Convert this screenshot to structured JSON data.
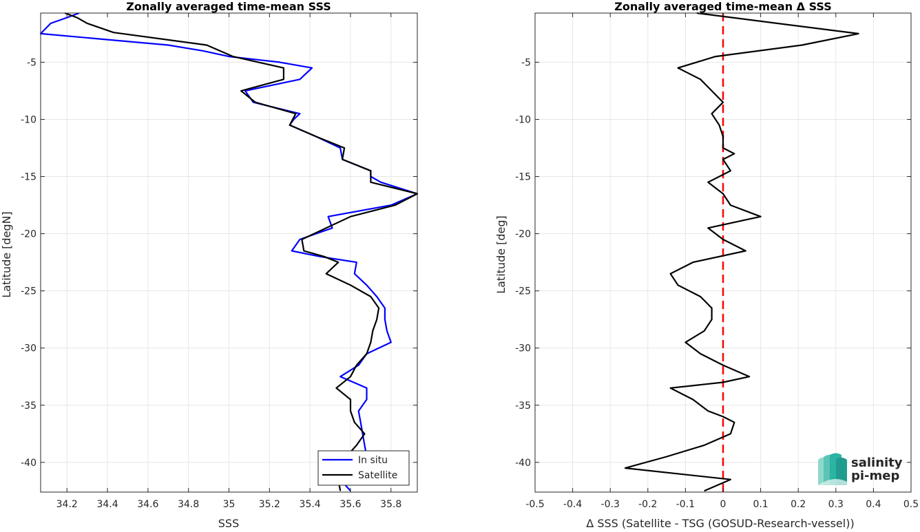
{
  "chart_data": [
    {
      "type": "line",
      "title": "Zonally averaged time-mean SSS",
      "xlabel": "SSS",
      "ylabel": "Latitude [degN]",
      "xlim": [
        34.07,
        35.93
      ],
      "ylim": [
        -42.6,
        -0.7
      ],
      "xticks": [
        34.2,
        34.4,
        34.6,
        34.8,
        35,
        35.2,
        35.4,
        35.6,
        35.8
      ],
      "xtick_labels": [
        "34.2",
        "34.4",
        "34.6",
        "34.8",
        "35",
        "35.2",
        "35.4",
        "35.6",
        "35.8"
      ],
      "yticks": [
        -5,
        -10,
        -15,
        -20,
        -25,
        -30,
        -35,
        -40
      ],
      "ytick_labels": [
        "-5",
        "-10",
        "-15",
        "-20",
        "-25",
        "-30",
        "-35",
        "-40"
      ],
      "grid": true,
      "legend": "bottom-right",
      "series": [
        {
          "name": "In situ",
          "color": "#0000ff",
          "points": [
            [
              34.26,
              -0.7
            ],
            [
              34.2,
              -1.1
            ],
            [
              34.12,
              -1.6
            ],
            [
              34.07,
              -2.5
            ],
            [
              34.7,
              -3.5
            ],
            [
              34.87,
              -4.0
            ],
            [
              35.0,
              -4.5
            ],
            [
              35.25,
              -5.0
            ],
            [
              35.41,
              -5.5
            ],
            [
              35.35,
              -6.5
            ],
            [
              35.08,
              -7.5
            ],
            [
              35.12,
              -8.5
            ],
            [
              35.35,
              -9.5
            ],
            [
              35.32,
              -10.0
            ],
            [
              35.3,
              -10.5
            ],
            [
              35.43,
              -11.5
            ],
            [
              35.55,
              -12.5
            ],
            [
              35.56,
              -13.5
            ],
            [
              35.7,
              -14.5
            ],
            [
              35.7,
              -15.0
            ],
            [
              35.75,
              -15.5
            ],
            [
              35.93,
              -16.5
            ],
            [
              35.8,
              -17.5
            ],
            [
              35.49,
              -18.5
            ],
            [
              35.51,
              -19.5
            ],
            [
              35.35,
              -20.5
            ],
            [
              35.31,
              -21.5
            ],
            [
              35.45,
              -22.0
            ],
            [
              35.63,
              -22.5
            ],
            [
              35.62,
              -23.5
            ],
            [
              35.68,
              -24.5
            ],
            [
              35.73,
              -25.5
            ],
            [
              35.77,
              -26.5
            ],
            [
              35.77,
              -27.5
            ],
            [
              35.78,
              -28.5
            ],
            [
              35.8,
              -29.5
            ],
            [
              35.68,
              -30.5
            ],
            [
              35.64,
              -31.5
            ],
            [
              35.55,
              -32.5
            ],
            [
              35.68,
              -33.5
            ],
            [
              35.68,
              -34.5
            ],
            [
              35.64,
              -35.5
            ],
            [
              35.65,
              -36.5
            ],
            [
              35.66,
              -37.5
            ],
            [
              35.67,
              -38.5
            ],
            [
              35.68,
              -39.5
            ],
            [
              35.6,
              -40.5
            ],
            [
              35.55,
              -41.5
            ],
            [
              35.6,
              -42.5
            ]
          ]
        },
        {
          "name": "Satellite",
          "color": "#000000",
          "points": [
            [
              34.19,
              -0.7
            ],
            [
              34.25,
              -1.1
            ],
            [
              34.3,
              -1.6
            ],
            [
              34.43,
              -2.4
            ],
            [
              34.89,
              -3.5
            ],
            [
              35.02,
              -4.5
            ],
            [
              35.27,
              -5.5
            ],
            [
              35.27,
              -6.5
            ],
            [
              35.06,
              -7.5
            ],
            [
              35.13,
              -8.5
            ],
            [
              35.33,
              -9.5
            ],
            [
              35.3,
              -10.5
            ],
            [
              35.43,
              -11.5
            ],
            [
              35.57,
              -12.5
            ],
            [
              35.56,
              -13.5
            ],
            [
              35.7,
              -14.5
            ],
            [
              35.7,
              -15.5
            ],
            [
              35.93,
              -16.5
            ],
            [
              35.82,
              -17.5
            ],
            [
              35.6,
              -18.5
            ],
            [
              35.36,
              -20.5
            ],
            [
              35.37,
              -21.5
            ],
            [
              35.47,
              -22.0
            ],
            [
              35.54,
              -22.5
            ],
            [
              35.48,
              -23.5
            ],
            [
              35.6,
              -24.5
            ],
            [
              35.7,
              -25.5
            ],
            [
              35.74,
              -26.5
            ],
            [
              35.73,
              -27.5
            ],
            [
              35.71,
              -28.5
            ],
            [
              35.7,
              -29.5
            ],
            [
              35.68,
              -30.5
            ],
            [
              35.63,
              -31.5
            ],
            [
              35.6,
              -32.5
            ],
            [
              35.53,
              -33.5
            ],
            [
              35.6,
              -34.5
            ],
            [
              35.6,
              -35.5
            ],
            [
              35.62,
              -36.5
            ],
            [
              35.67,
              -37.5
            ],
            [
              35.63,
              -38.5
            ],
            [
              35.58,
              -39.5
            ],
            [
              35.45,
              -40.5
            ],
            [
              35.54,
              -41.5
            ],
            [
              35.55,
              -42.5
            ]
          ]
        }
      ]
    },
    {
      "type": "line",
      "title": "Zonally averaged time-mean Δ SSS",
      "xlabel": "Δ SSS (Satellite - TSG (GOSUD-Research-vessel))",
      "ylabel": "Latitude [deg]",
      "xlim": [
        -0.5,
        0.5
      ],
      "ylim": [
        -42.6,
        -0.7
      ],
      "xticks": [
        -0.5,
        -0.4,
        -0.3,
        -0.2,
        -0.1,
        0,
        0.1,
        0.2,
        0.3,
        0.4,
        0.5
      ],
      "xtick_labels": [
        "-0.5",
        "-0.4",
        "-0.3",
        "-0.2",
        "-0.1",
        "0",
        "0.1",
        "0.2",
        "0.3",
        "0.4",
        "0.5"
      ],
      "yticks": [
        -5,
        -10,
        -15,
        -20,
        -25,
        -30,
        -35,
        -40
      ],
      "ytick_labels": [
        "-5",
        "-10",
        "-15",
        "-20",
        "-25",
        "-30",
        "-35",
        "-40"
      ],
      "grid": true,
      "reference_line": {
        "x": 0,
        "color": "#ff0000",
        "style": "dashed"
      },
      "series": [
        {
          "color": "#000000",
          "points": [
            [
              -0.07,
              -0.7
            ],
            [
              0.36,
              -2.5
            ],
            [
              0.21,
              -3.5
            ],
            [
              -0.02,
              -4.5
            ],
            [
              -0.12,
              -5.5
            ],
            [
              -0.06,
              -6.5
            ],
            [
              -0.03,
              -7.5
            ],
            [
              0.0,
              -8.5
            ],
            [
              -0.03,
              -9.5
            ],
            [
              -0.01,
              -10.5
            ],
            [
              0.0,
              -11.5
            ],
            [
              0.0,
              -12.5
            ],
            [
              0.03,
              -13.0
            ],
            [
              0.0,
              -13.5
            ],
            [
              0.02,
              -14.5
            ],
            [
              -0.04,
              -15.5
            ],
            [
              0.0,
              -16.5
            ],
            [
              0.02,
              -17.5
            ],
            [
              0.1,
              -18.5
            ],
            [
              -0.04,
              -19.5
            ],
            [
              0.0,
              -20.5
            ],
            [
              0.06,
              -21.5
            ],
            [
              -0.08,
              -22.5
            ],
            [
              -0.14,
              -23.5
            ],
            [
              -0.12,
              -24.5
            ],
            [
              -0.06,
              -25.5
            ],
            [
              -0.03,
              -26.5
            ],
            [
              -0.03,
              -27.5
            ],
            [
              -0.05,
              -28.5
            ],
            [
              -0.1,
              -29.5
            ],
            [
              -0.06,
              -30.5
            ],
            [
              0.0,
              -31.5
            ],
            [
              0.07,
              -32.5
            ],
            [
              0.0,
              -33.0
            ],
            [
              -0.14,
              -33.5
            ],
            [
              -0.08,
              -34.5
            ],
            [
              -0.04,
              -35.5
            ],
            [
              0.0,
              -36.0
            ],
            [
              0.03,
              -36.5
            ],
            [
              0.02,
              -37.5
            ],
            [
              -0.05,
              -38.5
            ],
            [
              -0.15,
              -39.5
            ],
            [
              -0.26,
              -40.5
            ],
            [
              0.02,
              -41.5
            ],
            [
              -0.05,
              -42.5
            ]
          ]
        }
      ]
    }
  ],
  "logo": {
    "line1": "salinity",
    "line2": "pi-mep",
    "color1": "#2bb3a3",
    "color2": "#1d6f6a"
  }
}
